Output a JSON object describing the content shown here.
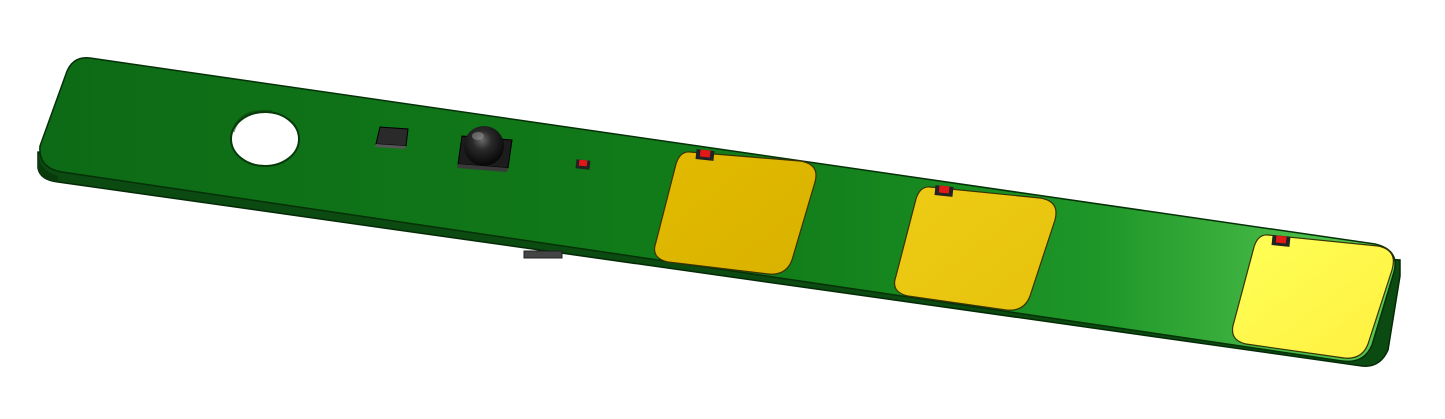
{
  "board": {
    "colors": {
      "board_dark": "#0a5a14",
      "board_mid": "#128a1a",
      "board_light": "#4cc24a",
      "edge": "#0b4a10",
      "pad_dark": "#e0b800",
      "pad_mid": "#ecc814",
      "pad_light": "#ffff4a",
      "led": "#e01818",
      "component": "#1a1a1a",
      "hole": "#ffffff"
    },
    "pads": [
      {
        "id": "pad-1",
        "led": true
      },
      {
        "id": "pad-2",
        "led": true
      },
      {
        "id": "pad-3",
        "led": true
      }
    ],
    "components": [
      "mounting-hole",
      "crystal",
      "tactile-button",
      "status-led",
      "connector"
    ]
  }
}
